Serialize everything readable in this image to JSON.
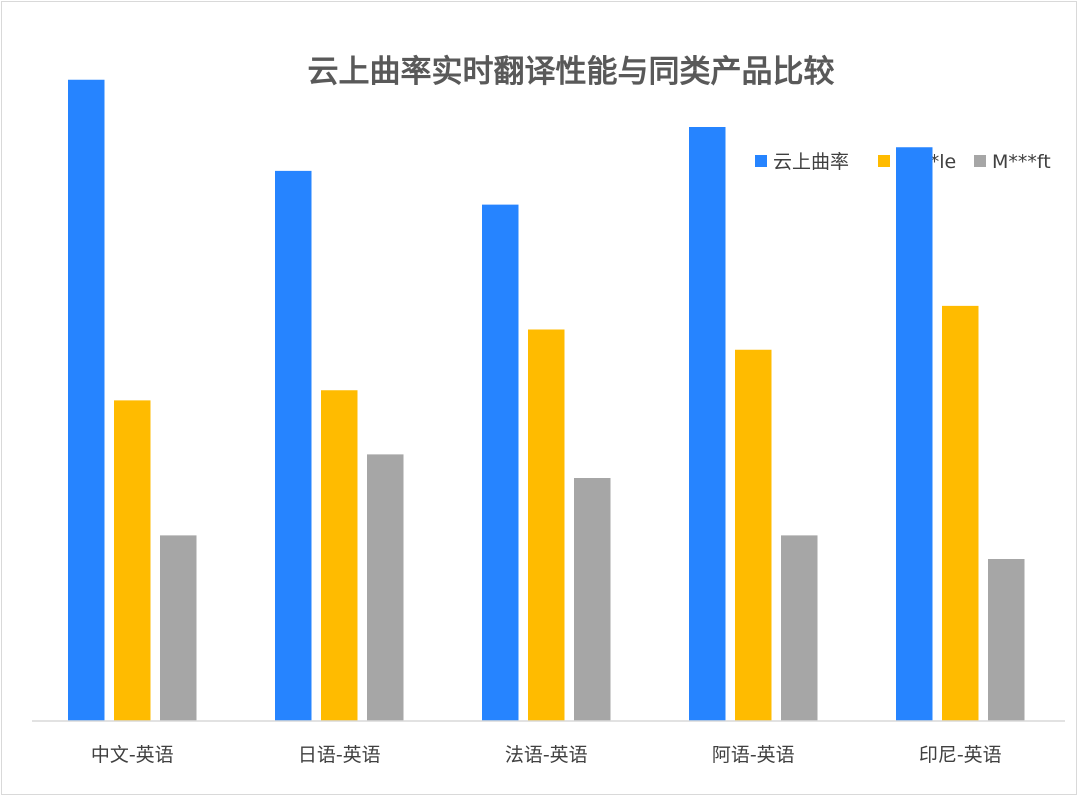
{
  "chart_data": {
    "type": "bar",
    "title": "云上曲率实时翻译性能与同类产品比较",
    "xlabel": "",
    "ylabel": "",
    "categories": [
      "中文-英语",
      "日语-英语",
      "法语-英语",
      "阿语-英语",
      "印尼-英语"
    ],
    "series": [
      {
        "name": "云上曲率",
        "color": "#2684FF",
        "values": [
          95,
          81.5,
          76.5,
          88,
          85
        ]
      },
      {
        "name": "G***le",
        "color": "#FFBB00",
        "values": [
          47.5,
          49,
          58,
          55,
          61.5
        ]
      },
      {
        "name": "M***ft",
        "color": "#A6A6A6",
        "values": [
          27.5,
          39.5,
          36,
          27.5,
          24
        ]
      }
    ],
    "ylim": [
      0,
      100
    ],
    "grid": false,
    "y_axis_visible": false,
    "legend_position": "top-right"
  }
}
